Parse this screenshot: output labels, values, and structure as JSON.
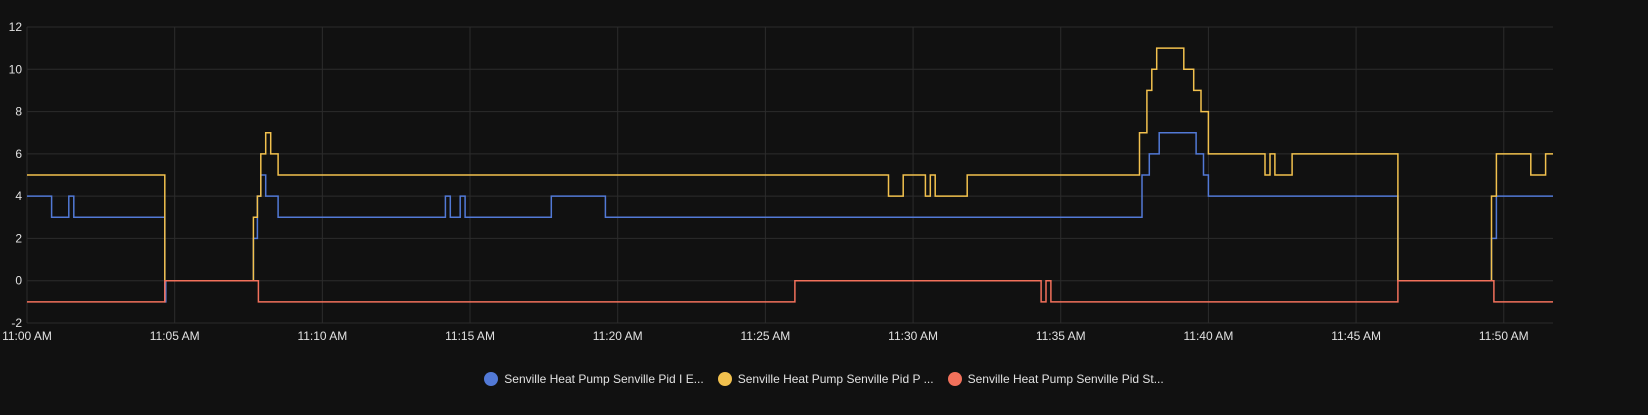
{
  "chart_data": {
    "type": "line",
    "step": true,
    "grid": true,
    "legend_position": "bottom-center",
    "title": "",
    "xlabel": "",
    "ylabel": "",
    "xlim": [
      "11:00",
      "11:51:40"
    ],
    "ylim": [
      -2,
      12
    ],
    "y_ticks": [
      "-2",
      "0",
      "2",
      "4",
      "6",
      "8",
      "10",
      "12"
    ],
    "x_ticks": [
      "11:00 AM",
      "11:05 AM",
      "11:10 AM",
      "11:15 AM",
      "11:20 AM",
      "11:25 AM",
      "11:30 AM",
      "11:35 AM",
      "11:40 AM",
      "11:45 AM",
      "11:50 AM"
    ],
    "series": [
      {
        "name": "Senville Heat Pump Senville Pid I E...",
        "color": "#5279d6",
        "points": [
          [
            "11:00:00",
            4
          ],
          [
            "11:00:50",
            3
          ],
          [
            "11:01:25",
            4
          ],
          [
            "11:01:35",
            3
          ],
          [
            "11:04:40",
            -1
          ],
          [
            "11:04:42",
            0
          ],
          [
            "11:07:40",
            2
          ],
          [
            "11:07:48",
            4
          ],
          [
            "11:07:55",
            5
          ],
          [
            "11:08:05",
            4
          ],
          [
            "11:08:30",
            3
          ],
          [
            "11:14:10",
            4
          ],
          [
            "11:14:20",
            3
          ],
          [
            "11:14:40",
            4
          ],
          [
            "11:14:50",
            3
          ],
          [
            "11:17:45",
            4
          ],
          [
            "11:19:35",
            3
          ],
          [
            "11:37:45",
            5
          ],
          [
            "11:38:00",
            6
          ],
          [
            "11:38:20",
            7
          ],
          [
            "11:39:35",
            6
          ],
          [
            "11:39:50",
            5
          ],
          [
            "11:40:00",
            4
          ],
          [
            "11:46:25",
            0
          ],
          [
            "11:49:35",
            2
          ],
          [
            "11:49:45",
            4
          ],
          [
            "11:51:40",
            4
          ]
        ]
      },
      {
        "name": "Senville Heat Pump Senville Pid P ...",
        "color": "#f2c14e",
        "points": [
          [
            "11:00:00",
            5
          ],
          [
            "11:04:40",
            0
          ],
          [
            "11:07:40",
            3
          ],
          [
            "11:07:48",
            4
          ],
          [
            "11:07:55",
            6
          ],
          [
            "11:08:05",
            7
          ],
          [
            "11:08:15",
            6
          ],
          [
            "11:08:30",
            5
          ],
          [
            "11:29:10",
            4
          ],
          [
            "11:29:40",
            5
          ],
          [
            "11:30:25",
            4
          ],
          [
            "11:30:35",
            5
          ],
          [
            "11:30:45",
            4
          ],
          [
            "11:31:50",
            5
          ],
          [
            "11:37:40",
            7
          ],
          [
            "11:37:55",
            9
          ],
          [
            "11:38:05",
            10
          ],
          [
            "11:38:15",
            11
          ],
          [
            "11:39:10",
            10
          ],
          [
            "11:39:30",
            9
          ],
          [
            "11:39:45",
            8
          ],
          [
            "11:40:00",
            6
          ],
          [
            "11:41:55",
            5
          ],
          [
            "11:42:05",
            6
          ],
          [
            "11:42:15",
            5
          ],
          [
            "11:42:50",
            6
          ],
          [
            "11:46:25",
            0
          ],
          [
            "11:49:35",
            4
          ],
          [
            "11:49:45",
            6
          ],
          [
            "11:50:55",
            5
          ],
          [
            "11:51:25",
            6
          ],
          [
            "11:51:40",
            6
          ]
        ]
      },
      {
        "name": "Senville Heat Pump Senville Pid St...",
        "color": "#f2715b",
        "points": [
          [
            "11:00:00",
            -1
          ],
          [
            "11:04:40",
            0
          ],
          [
            "11:07:50",
            -1
          ],
          [
            "11:26:00",
            0
          ],
          [
            "11:34:20",
            -1
          ],
          [
            "11:34:30",
            0
          ],
          [
            "11:34:40",
            -1
          ],
          [
            "11:46:25",
            0
          ],
          [
            "11:49:40",
            -1
          ],
          [
            "11:51:40",
            -1
          ]
        ]
      }
    ]
  }
}
